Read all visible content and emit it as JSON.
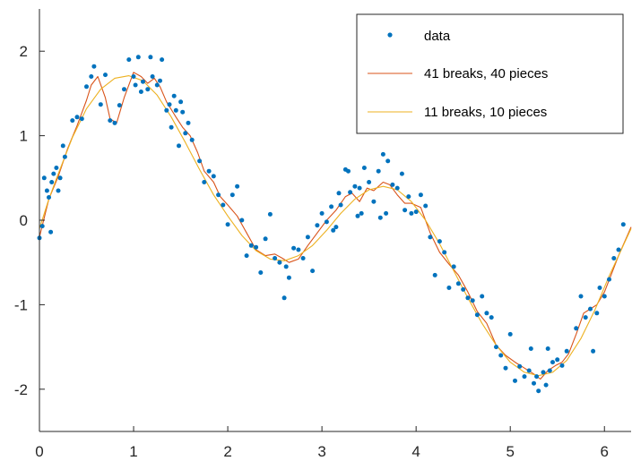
{
  "chart_data": {
    "type": "scatter",
    "xlim": [
      0,
      6.2832
    ],
    "ylim": [
      -2.5,
      2.5
    ],
    "xticks": [
      "0",
      "1",
      "2",
      "3",
      "4",
      "5",
      "6"
    ],
    "yticks": [
      "2",
      "1",
      "0",
      "-1",
      "-2"
    ],
    "xtick_values": [
      0,
      1,
      2,
      3,
      4,
      5,
      6
    ],
    "ytick_values": [
      2,
      1,
      0,
      -1,
      -2
    ],
    "legend_position": "top-right",
    "grid": false,
    "colors": {
      "data": "#0072BD",
      "fit41": "#D95319",
      "fit11": "#EDB120",
      "axis": "#262626"
    },
    "series": [
      {
        "name": "data",
        "marker": "point",
        "points": [
          [
            0.0,
            -0.21
          ],
          [
            0.03,
            -0.07
          ],
          [
            0.05,
            0.5
          ],
          [
            0.08,
            0.35
          ],
          [
            0.1,
            0.27
          ],
          [
            0.12,
            -0.14
          ],
          [
            0.13,
            0.45
          ],
          [
            0.15,
            0.55
          ],
          [
            0.18,
            0.62
          ],
          [
            0.2,
            0.35
          ],
          [
            0.22,
            0.5
          ],
          [
            0.25,
            0.88
          ],
          [
            0.27,
            0.75
          ],
          [
            0.35,
            1.18
          ],
          [
            0.4,
            1.22
          ],
          [
            0.45,
            1.2
          ],
          [
            0.5,
            1.58
          ],
          [
            0.55,
            1.7
          ],
          [
            0.58,
            1.82
          ],
          [
            0.65,
            1.37
          ],
          [
            0.7,
            1.72
          ],
          [
            0.75,
            1.18
          ],
          [
            0.8,
            1.15
          ],
          [
            0.85,
            1.36
          ],
          [
            0.9,
            1.55
          ],
          [
            0.95,
            1.9
          ],
          [
            1.0,
            1.7
          ],
          [
            1.02,
            1.6
          ],
          [
            1.05,
            1.93
          ],
          [
            1.08,
            1.52
          ],
          [
            1.1,
            1.64
          ],
          [
            1.15,
            1.55
          ],
          [
            1.18,
            1.93
          ],
          [
            1.2,
            1.7
          ],
          [
            1.25,
            1.6
          ],
          [
            1.28,
            1.65
          ],
          [
            1.3,
            1.9
          ],
          [
            1.35,
            1.3
          ],
          [
            1.38,
            1.37
          ],
          [
            1.4,
            1.1
          ],
          [
            1.43,
            1.47
          ],
          [
            1.45,
            1.3
          ],
          [
            1.48,
            0.88
          ],
          [
            1.5,
            1.4
          ],
          [
            1.52,
            1.28
          ],
          [
            1.55,
            1.03
          ],
          [
            1.58,
            1.15
          ],
          [
            1.62,
            0.95
          ],
          [
            1.7,
            0.7
          ],
          [
            1.75,
            0.45
          ],
          [
            1.8,
            0.58
          ],
          [
            1.85,
            0.52
          ],
          [
            1.9,
            0.3
          ],
          [
            1.95,
            0.18
          ],
          [
            2.0,
            -0.05
          ],
          [
            2.05,
            0.3
          ],
          [
            2.1,
            0.4
          ],
          [
            2.15,
            0.0
          ],
          [
            2.2,
            -0.42
          ],
          [
            2.25,
            -0.3
          ],
          [
            2.3,
            -0.32
          ],
          [
            2.35,
            -0.62
          ],
          [
            2.4,
            -0.22
          ],
          [
            2.45,
            0.07
          ],
          [
            2.5,
            -0.45
          ],
          [
            2.55,
            -0.5
          ],
          [
            2.6,
            -0.92
          ],
          [
            2.62,
            -0.55
          ],
          [
            2.65,
            -0.68
          ],
          [
            2.7,
            -0.33
          ],
          [
            2.75,
            -0.35
          ],
          [
            2.8,
            -0.45
          ],
          [
            2.85,
            -0.2
          ],
          [
            2.9,
            -0.6
          ],
          [
            2.95,
            -0.06
          ],
          [
            3.0,
            0.08
          ],
          [
            3.05,
            -0.02
          ],
          [
            3.1,
            0.16
          ],
          [
            3.12,
            -0.12
          ],
          [
            3.15,
            -0.08
          ],
          [
            3.18,
            0.32
          ],
          [
            3.2,
            0.18
          ],
          [
            3.25,
            0.6
          ],
          [
            3.28,
            0.58
          ],
          [
            3.3,
            0.33
          ],
          [
            3.35,
            0.4
          ],
          [
            3.38,
            0.05
          ],
          [
            3.4,
            0.38
          ],
          [
            3.42,
            0.08
          ],
          [
            3.45,
            0.62
          ],
          [
            3.5,
            0.45
          ],
          [
            3.55,
            0.22
          ],
          [
            3.6,
            0.58
          ],
          [
            3.62,
            0.03
          ],
          [
            3.65,
            0.78
          ],
          [
            3.68,
            0.08
          ],
          [
            3.7,
            0.7
          ],
          [
            3.75,
            0.42
          ],
          [
            3.8,
            0.38
          ],
          [
            3.85,
            0.55
          ],
          [
            3.88,
            0.12
          ],
          [
            3.92,
            0.28
          ],
          [
            3.95,
            0.08
          ],
          [
            4.0,
            0.1
          ],
          [
            4.05,
            0.3
          ],
          [
            4.1,
            0.17
          ],
          [
            4.15,
            -0.2
          ],
          [
            4.2,
            -0.65
          ],
          [
            4.25,
            -0.25
          ],
          [
            4.3,
            -0.38
          ],
          [
            4.35,
            -0.8
          ],
          [
            4.4,
            -0.55
          ],
          [
            4.45,
            -0.75
          ],
          [
            4.5,
            -0.82
          ],
          [
            4.55,
            -0.92
          ],
          [
            4.6,
            -0.95
          ],
          [
            4.65,
            -1.12
          ],
          [
            4.7,
            -0.9
          ],
          [
            4.75,
            -1.1
          ],
          [
            4.8,
            -1.15
          ],
          [
            4.85,
            -1.5
          ],
          [
            4.9,
            -1.6
          ],
          [
            4.95,
            -1.75
          ],
          [
            5.0,
            -1.35
          ],
          [
            5.05,
            -1.9
          ],
          [
            5.1,
            -1.73
          ],
          [
            5.15,
            -1.85
          ],
          [
            5.2,
            -1.78
          ],
          [
            5.22,
            -1.52
          ],
          [
            5.25,
            -1.93
          ],
          [
            5.28,
            -1.85
          ],
          [
            5.3,
            -2.02
          ],
          [
            5.35,
            -1.8
          ],
          [
            5.38,
            -1.95
          ],
          [
            5.4,
            -1.52
          ],
          [
            5.42,
            -1.78
          ],
          [
            5.45,
            -1.68
          ],
          [
            5.5,
            -1.65
          ],
          [
            5.55,
            -1.72
          ],
          [
            5.6,
            -1.55
          ],
          [
            5.7,
            -1.28
          ],
          [
            5.75,
            -0.9
          ],
          [
            5.8,
            -1.15
          ],
          [
            5.85,
            -1.05
          ],
          [
            5.88,
            -1.55
          ],
          [
            5.92,
            -1.1
          ],
          [
            5.95,
            -0.8
          ],
          [
            6.0,
            -0.9
          ],
          [
            6.05,
            -0.7
          ],
          [
            6.1,
            -0.45
          ],
          [
            6.15,
            -0.35
          ],
          [
            6.2,
            -0.05
          ]
        ]
      },
      {
        "name": "41 breaks, 40 pieces",
        "marker": "line",
        "points": [
          [
            0.0,
            -0.2
          ],
          [
            0.1,
            0.25
          ],
          [
            0.2,
            0.52
          ],
          [
            0.3,
            0.85
          ],
          [
            0.4,
            1.12
          ],
          [
            0.5,
            1.42
          ],
          [
            0.55,
            1.6
          ],
          [
            0.62,
            1.7
          ],
          [
            0.7,
            1.45
          ],
          [
            0.75,
            1.2
          ],
          [
            0.82,
            1.15
          ],
          [
            0.9,
            1.45
          ],
          [
            1.0,
            1.75
          ],
          [
            1.08,
            1.7
          ],
          [
            1.15,
            1.62
          ],
          [
            1.22,
            1.68
          ],
          [
            1.28,
            1.58
          ],
          [
            1.35,
            1.4
          ],
          [
            1.45,
            1.22
          ],
          [
            1.52,
            1.1
          ],
          [
            1.6,
            1.0
          ],
          [
            1.68,
            0.8
          ],
          [
            1.75,
            0.58
          ],
          [
            1.85,
            0.45
          ],
          [
            1.92,
            0.28
          ],
          [
            2.0,
            0.18
          ],
          [
            2.1,
            0.05
          ],
          [
            2.2,
            -0.15
          ],
          [
            2.3,
            -0.35
          ],
          [
            2.4,
            -0.42
          ],
          [
            2.5,
            -0.4
          ],
          [
            2.58,
            -0.45
          ],
          [
            2.65,
            -0.5
          ],
          [
            2.75,
            -0.46
          ],
          [
            2.85,
            -0.3
          ],
          [
            2.95,
            -0.15
          ],
          [
            3.05,
            0.0
          ],
          [
            3.15,
            0.12
          ],
          [
            3.25,
            0.28
          ],
          [
            3.32,
            0.32
          ],
          [
            3.4,
            0.22
          ],
          [
            3.48,
            0.38
          ],
          [
            3.55,
            0.35
          ],
          [
            3.65,
            0.45
          ],
          [
            3.72,
            0.42
          ],
          [
            3.8,
            0.3
          ],
          [
            3.88,
            0.2
          ],
          [
            3.95,
            0.2
          ],
          [
            4.05,
            0.15
          ],
          [
            4.15,
            -0.15
          ],
          [
            4.25,
            -0.38
          ],
          [
            4.35,
            -0.52
          ],
          [
            4.45,
            -0.65
          ],
          [
            4.55,
            -0.85
          ],
          [
            4.65,
            -1.08
          ],
          [
            4.75,
            -1.22
          ],
          [
            4.85,
            -1.48
          ],
          [
            4.95,
            -1.6
          ],
          [
            5.05,
            -1.68
          ],
          [
            5.15,
            -1.75
          ],
          [
            5.25,
            -1.82
          ],
          [
            5.32,
            -1.88
          ],
          [
            5.4,
            -1.78
          ],
          [
            5.48,
            -1.72
          ],
          [
            5.55,
            -1.68
          ],
          [
            5.62,
            -1.58
          ],
          [
            5.7,
            -1.35
          ],
          [
            5.78,
            -1.1
          ],
          [
            5.85,
            -1.05
          ],
          [
            5.92,
            -1.0
          ],
          [
            6.0,
            -0.85
          ],
          [
            6.08,
            -0.62
          ],
          [
            6.15,
            -0.42
          ],
          [
            6.2832,
            -0.08
          ]
        ]
      },
      {
        "name": "11 breaks, 10 pieces",
        "marker": "line",
        "points": [
          [
            0.0,
            -0.1
          ],
          [
            0.1,
            0.25
          ],
          [
            0.2,
            0.55
          ],
          [
            0.35,
            0.98
          ],
          [
            0.5,
            1.32
          ],
          [
            0.65,
            1.55
          ],
          [
            0.8,
            1.68
          ],
          [
            0.95,
            1.71
          ],
          [
            1.1,
            1.65
          ],
          [
            1.25,
            1.48
          ],
          [
            1.4,
            1.22
          ],
          [
            1.55,
            0.92
          ],
          [
            1.7,
            0.6
          ],
          [
            1.85,
            0.3
          ],
          [
            2.0,
            0.05
          ],
          [
            2.15,
            -0.18
          ],
          [
            2.3,
            -0.36
          ],
          [
            2.45,
            -0.46
          ],
          [
            2.6,
            -0.48
          ],
          [
            2.75,
            -0.42
          ],
          [
            2.9,
            -0.3
          ],
          [
            3.05,
            -0.12
          ],
          [
            3.2,
            0.08
          ],
          [
            3.35,
            0.25
          ],
          [
            3.5,
            0.36
          ],
          [
            3.65,
            0.4
          ],
          [
            3.8,
            0.36
          ],
          [
            3.95,
            0.22
          ],
          [
            4.1,
            0.0
          ],
          [
            4.25,
            -0.28
          ],
          [
            4.4,
            -0.6
          ],
          [
            4.55,
            -0.92
          ],
          [
            4.7,
            -1.22
          ],
          [
            4.85,
            -1.48
          ],
          [
            5.0,
            -1.68
          ],
          [
            5.15,
            -1.8
          ],
          [
            5.3,
            -1.84
          ],
          [
            5.45,
            -1.8
          ],
          [
            5.6,
            -1.66
          ],
          [
            5.75,
            -1.4
          ],
          [
            5.9,
            -1.06
          ],
          [
            6.05,
            -0.66
          ],
          [
            6.2832,
            -0.1
          ]
        ]
      }
    ]
  }
}
